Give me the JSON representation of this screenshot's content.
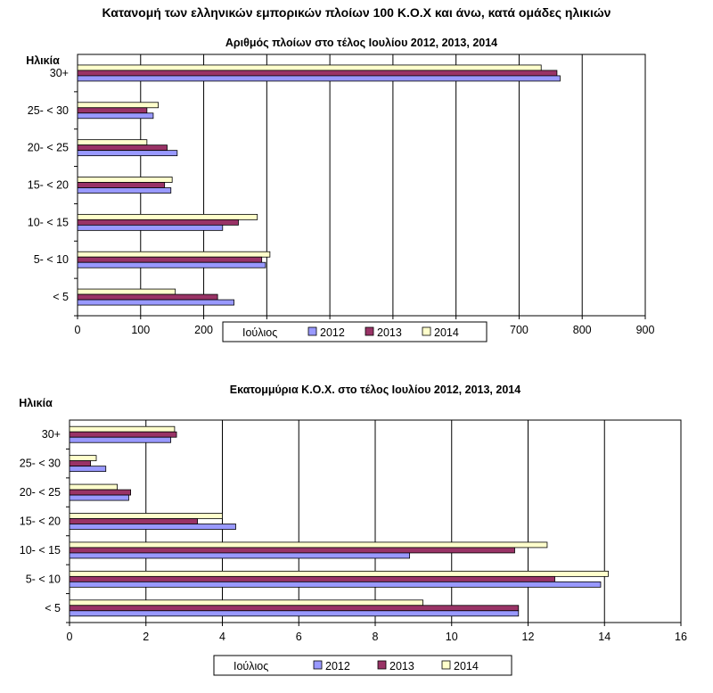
{
  "page": {
    "title": "Κατανομή των ελληνικών εμπορικών πλοίων 100 Κ.Ο.Χ και άνω, κατά ομάδες ηλικιών"
  },
  "colors": {
    "2012": "#9999ff",
    "2013": "#993366",
    "2014": "#ffffcc",
    "outline": "#000000"
  },
  "chart_data": [
    {
      "type": "bar",
      "orientation": "horizontal",
      "title": "Αριθμός πλοίων στο τέλος Ιουλίου 2012, 2013, 2014",
      "ylabel": "Ηλικία",
      "xlabel": "",
      "categories": [
        "30+",
        "25- < 30",
        "20- < 25",
        "15- < 20",
        "10- < 15",
        "5- < 10",
        "< 5"
      ],
      "series": [
        {
          "name": "2012",
          "values": [
            765,
            120,
            158,
            148,
            230,
            298,
            248
          ]
        },
        {
          "name": "2013",
          "values": [
            760,
            110,
            142,
            138,
            255,
            292,
            222
          ]
        },
        {
          "name": "2014",
          "values": [
            735,
            128,
            110,
            150,
            285,
            305,
            155
          ]
        }
      ],
      "xlim": [
        0,
        900
      ],
      "xticks": [
        "0",
        "100",
        "200",
        "300",
        "400",
        "500",
        "600",
        "700",
        "800",
        "900"
      ],
      "grid": true,
      "legend": {
        "title": "Ιούλιος",
        "position": "bottom"
      }
    },
    {
      "type": "bar",
      "orientation": "horizontal",
      "title": "Εκατομμύρια Κ.Ο.Χ. στο τέλος Ιουλίου 2012, 2013, 2014",
      "ylabel": "Ηλικία",
      "xlabel": "",
      "categories": [
        "30+",
        "25- < 30",
        "20- < 25",
        "15- < 20",
        "10- < 15",
        "5- < 10",
        "< 5"
      ],
      "series": [
        {
          "name": "2012",
          "values": [
            2.65,
            0.95,
            1.55,
            4.35,
            8.9,
            13.9,
            11.75
          ]
        },
        {
          "name": "2013",
          "values": [
            2.8,
            0.55,
            1.6,
            3.35,
            11.65,
            12.7,
            11.75
          ]
        },
        {
          "name": "2014",
          "values": [
            2.75,
            0.7,
            1.25,
            4.0,
            12.5,
            14.1,
            9.25
          ]
        }
      ],
      "xlim": [
        0,
        16
      ],
      "xticks": [
        "0",
        "2",
        "4",
        "6",
        "8",
        "10",
        "12",
        "14",
        "16"
      ],
      "grid": true,
      "legend": {
        "title": "Ιούλιος",
        "position": "bottom"
      }
    }
  ]
}
